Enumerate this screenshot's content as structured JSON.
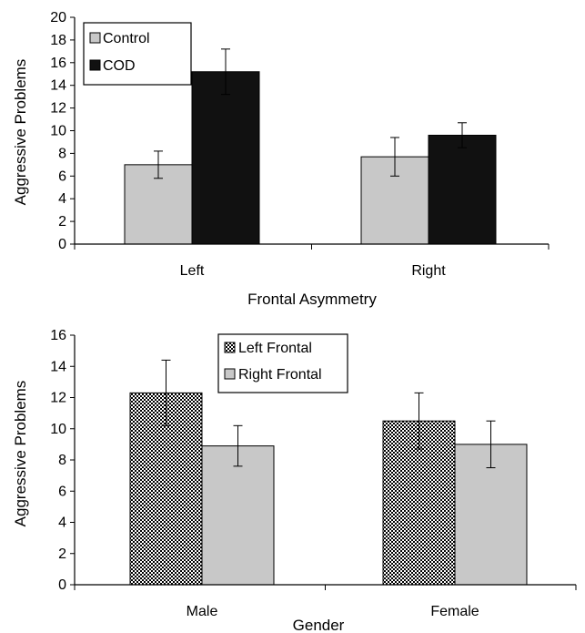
{
  "chart_data": [
    {
      "type": "bar",
      "title": "",
      "xlabel": "Frontal Asymmetry",
      "ylabel": "Aggressive Problems",
      "ylim": [
        0,
        20
      ],
      "yticks": [
        "0",
        "2",
        "4",
        "6",
        "8",
        "10",
        "12",
        "14",
        "16",
        "18",
        "20"
      ],
      "categories": [
        "Left",
        "Right"
      ],
      "series": [
        {
          "name": "Control",
          "values": [
            7.0,
            7.7
          ],
          "errors": [
            1.2,
            1.7
          ],
          "color": "#c8c8c8",
          "pattern": "solid"
        },
        {
          "name": "COD",
          "values": [
            15.2,
            9.6
          ],
          "errors": [
            2.0,
            1.1
          ],
          "color": "#111111",
          "pattern": "solid"
        }
      ],
      "legend_position": "top-left"
    },
    {
      "type": "bar",
      "title": "",
      "xlabel": "Gender",
      "ylabel": "Aggressive Problems",
      "ylim": [
        0,
        16
      ],
      "yticks": [
        "0",
        "2",
        "4",
        "6",
        "8",
        "10",
        "12",
        "14",
        "16"
      ],
      "categories": [
        "Male",
        "Female"
      ],
      "series": [
        {
          "name": "Left Frontal",
          "values": [
            12.3,
            10.5
          ],
          "errors": [
            2.1,
            1.8
          ],
          "color": "#000000",
          "pattern": "checkered"
        },
        {
          "name": "Right Frontal",
          "values": [
            8.9,
            9.0
          ],
          "errors": [
            1.3,
            1.5
          ],
          "color": "#c8c8c8",
          "pattern": "solid"
        }
      ],
      "legend_position": "top-center"
    }
  ]
}
